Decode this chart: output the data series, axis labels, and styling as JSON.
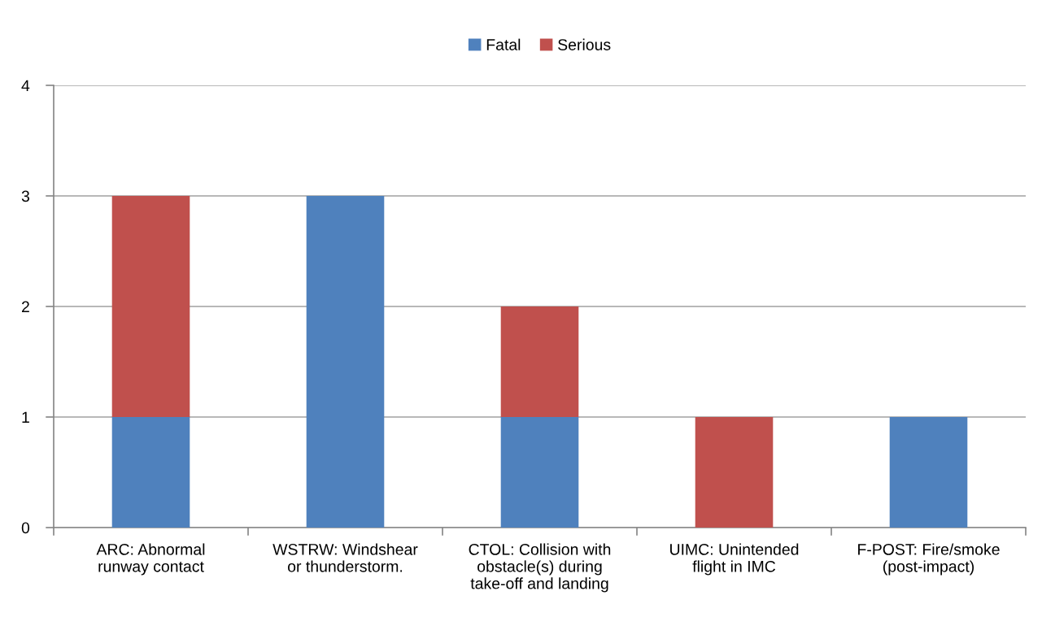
{
  "chart_data": {
    "type": "bar",
    "stacked": true,
    "categories": [
      "ARC: Abnormal\nrunway contact",
      "WSTRW: Windshear\nor thunderstorm.",
      "CTOL: Collision with\nobstacle(s) during\ntake-off and landing",
      "UIMC: Unintended\nflight in IMC",
      "F-POST: Fire/smoke\n(post-impact)"
    ],
    "series": [
      {
        "name": "Fatal",
        "color": "#4f81bd",
        "values": [
          1,
          3,
          1,
          0,
          1
        ]
      },
      {
        "name": "Serious",
        "color": "#c0504d",
        "values": [
          2,
          0,
          1,
          1,
          0
        ]
      }
    ],
    "ylim": [
      0,
      4
    ],
    "yticks": [
      0,
      1,
      2,
      3,
      4
    ],
    "grid": "y",
    "legend": "top"
  }
}
